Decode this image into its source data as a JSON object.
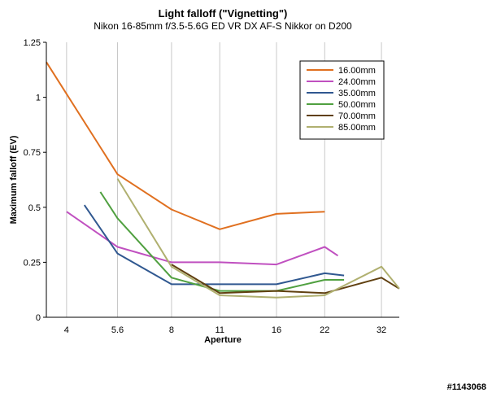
{
  "watermark": "#1143068",
  "chart_data": {
    "type": "line",
    "title": "Light falloff (\"Vignetting\")",
    "subtitle": "Nikon 16-85mm f/3.5-5.6G ED VR DX AF-S Nikkor on D200",
    "xlabel": "Aperture",
    "ylabel": "Maximum falloff (EV)",
    "x_scale": "log2",
    "xlim": [
      3.5,
      36
    ],
    "ylim": [
      0,
      1.25
    ],
    "x_ticks": [
      4,
      5.6,
      8,
      11,
      16,
      22,
      32
    ],
    "x_tick_labels": [
      "4",
      "5.6",
      "8",
      "11",
      "16",
      "22",
      "32"
    ],
    "y_ticks": [
      0,
      0.25,
      0.5,
      0.75,
      1,
      1.25
    ],
    "y_tick_labels": [
      "0",
      "0.25",
      "0.5",
      "0.75",
      "1",
      "1.25"
    ],
    "grid": "vertical",
    "legend_position": "top-right",
    "series": [
      {
        "name": "16.00mm",
        "color": "#e07020",
        "x": [
          3.5,
          5.6,
          8,
          11,
          16,
          22
        ],
        "y": [
          1.16,
          0.65,
          0.49,
          0.4,
          0.47,
          0.48
        ]
      },
      {
        "name": "24.00mm",
        "color": "#c050c0",
        "x": [
          4,
          5.6,
          8,
          11,
          16,
          22,
          24
        ],
        "y": [
          0.48,
          0.32,
          0.25,
          0.25,
          0.24,
          0.32,
          0.28
        ]
      },
      {
        "name": "35.00mm",
        "color": "#305890",
        "x": [
          4.5,
          5.6,
          8,
          11,
          16,
          22,
          25
        ],
        "y": [
          0.51,
          0.29,
          0.15,
          0.15,
          0.15,
          0.2,
          0.19
        ]
      },
      {
        "name": "50.00mm",
        "color": "#50a040",
        "x": [
          5,
          5.6,
          8,
          11,
          16,
          22,
          25
        ],
        "y": [
          0.57,
          0.45,
          0.18,
          0.12,
          0.12,
          0.17,
          0.17
        ]
      },
      {
        "name": "70.00mm",
        "color": "#604010",
        "x": [
          8,
          11,
          16,
          22,
          32,
          36
        ],
        "y": [
          0.24,
          0.11,
          0.12,
          0.11,
          0.18,
          0.13
        ]
      },
      {
        "name": "85.00mm",
        "color": "#b0b070",
        "x": [
          5.6,
          8,
          11,
          16,
          22,
          32,
          36
        ],
        "y": [
          0.63,
          0.23,
          0.1,
          0.09,
          0.1,
          0.23,
          0.13
        ]
      }
    ]
  }
}
